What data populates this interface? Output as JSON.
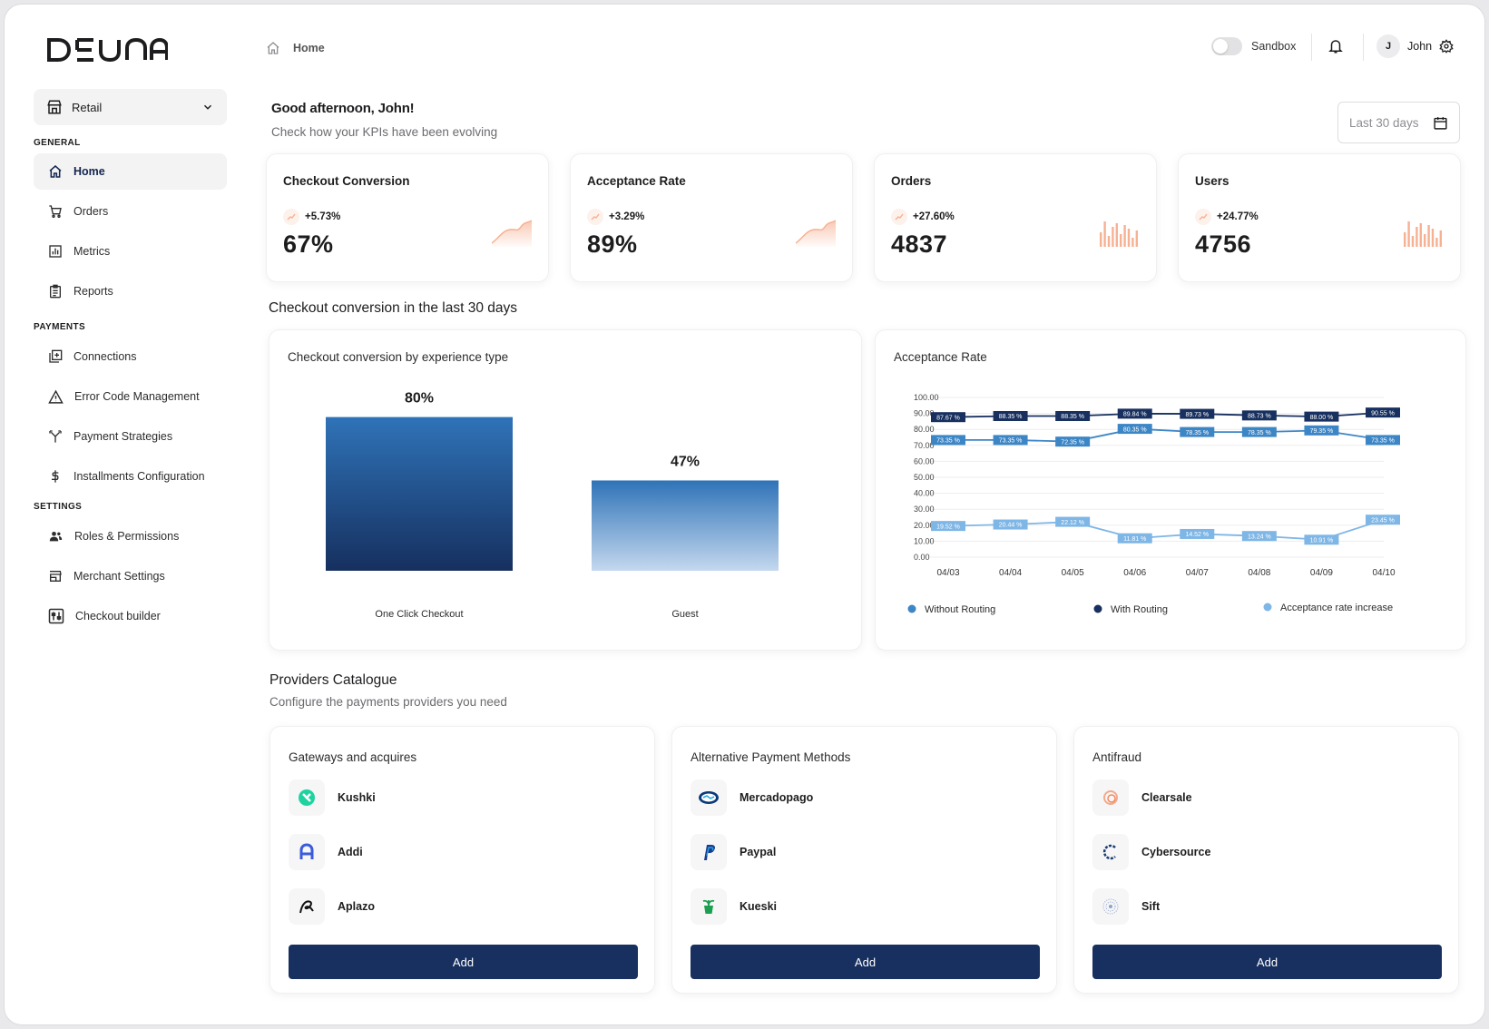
{
  "app": {
    "logo": "DEUNA"
  },
  "sidebar": {
    "store": "Retail",
    "sections": {
      "general": "GENERAL",
      "payments": "PAYMENTS",
      "settings": "SETTINGS"
    },
    "items": {
      "home": "Home",
      "orders": "Orders",
      "metrics": "Metrics",
      "reports": "Reports",
      "connections": "Connections",
      "error_codes": "Error Code Management",
      "payment_strategies": "Payment Strategies",
      "installments": "Installments Configuration",
      "roles": "Roles & Permissions",
      "merchant_settings": "Merchant Settings",
      "checkout_builder": "Checkout builder"
    }
  },
  "header": {
    "breadcrumb": "Home",
    "sandbox_label": "Sandbox",
    "user_initial": "J",
    "user_name": "John"
  },
  "greeting": {
    "title": "Good afternoon, John!",
    "subtitle": "Check how your KPIs have been evolving",
    "date_range": "Last 30 days"
  },
  "kpis": [
    {
      "title": "Checkout Conversion",
      "delta": "+5.73%",
      "value": "67%",
      "spark": "area"
    },
    {
      "title": "Acceptance Rate",
      "delta": "+3.29%",
      "value": "89%",
      "spark": "area"
    },
    {
      "title": "Orders",
      "delta": "+27.60%",
      "value": "4837",
      "spark": "bars"
    },
    {
      "title": "Users",
      "delta": "+24.77%",
      "value": "4756",
      "spark": "bars"
    }
  ],
  "colors": {
    "primary": "#17305f",
    "spark": "#f6b193",
    "bar_top": "#2f73b8",
    "bar_bottom": "#16305f",
    "with_routing": "#17305f",
    "without_routing": "#3d86c6",
    "increase": "#7eb6e6"
  },
  "conversion_section": {
    "title": "Checkout conversion in the last 30 days"
  },
  "chart_data": [
    {
      "type": "bar",
      "title": "Checkout conversion by experience type",
      "categories": [
        "One Click Checkout",
        "Guest"
      ],
      "values": [
        80,
        47
      ],
      "labels": [
        "80%",
        "47%"
      ]
    },
    {
      "type": "line",
      "title": "Acceptance Rate",
      "x": [
        "04/03",
        "04/04",
        "04/05",
        "04/06",
        "04/07",
        "04/08",
        "04/09",
        "04/10"
      ],
      "yticks": [
        "100.00",
        "90.00",
        "80.00",
        "70.00",
        "60.00",
        "50.00",
        "40.00",
        "30.00",
        "20.00",
        "10.00",
        "0.00"
      ],
      "ylim": [
        0,
        100
      ],
      "legend_position": "bottom",
      "series": [
        {
          "name": "With Routing",
          "values": [
            87.67,
            88.35,
            88.35,
            89.84,
            89.73,
            88.73,
            88.0,
            90.55
          ],
          "labels": [
            "87.67 %",
            "88.35 %",
            "88.35 %",
            "89.84 %",
            "89.73 %",
            "88.73 %",
            "88.00 %",
            "90.55 %"
          ]
        },
        {
          "name": "Without Routing",
          "values": [
            73.35,
            73.35,
            72.35,
            80.35,
            78.35,
            78.35,
            79.35,
            73.35
          ],
          "labels": [
            "73.35 %",
            "73.35 %",
            "72.35 %",
            "80.35 %",
            "78.35 %",
            "78.35 %",
            "79.35 %",
            "73.35 %"
          ]
        },
        {
          "name": "Acceptance rate increase",
          "values": [
            19.52,
            20.44,
            22.12,
            11.81,
            14.52,
            13.24,
            10.91,
            23.45
          ],
          "labels": [
            "19.52 %",
            "20.44 %",
            "22.12 %",
            "11.81 %",
            "14.52 %",
            "13.24 %",
            "10.91 %",
            "23.45 %"
          ]
        }
      ]
    }
  ],
  "providers": {
    "title": "Providers Catalogue",
    "subtitle": "Configure the payments providers you need",
    "groups": [
      {
        "title": "Gateways and acquires",
        "items": [
          "Kushki",
          "Addi",
          "Aplazo"
        ],
        "add": "Add"
      },
      {
        "title": "Alternative Payment Methods",
        "items": [
          "Mercadopago",
          "Paypal",
          "Kueski"
        ],
        "add": "Add"
      },
      {
        "title": "Antifraud",
        "items": [
          "Clearsale",
          "Cybersource",
          "Sift"
        ],
        "add": "Add"
      }
    ]
  }
}
